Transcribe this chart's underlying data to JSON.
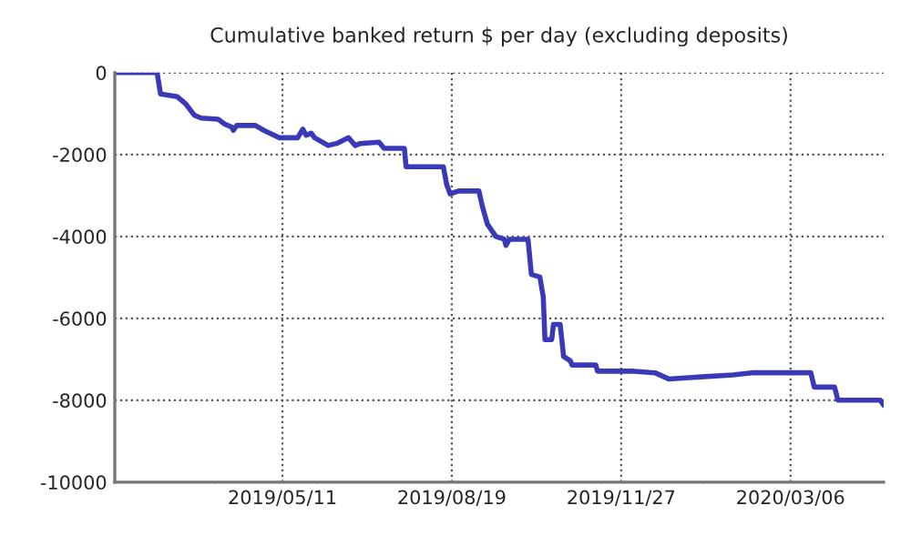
{
  "chart_data": {
    "type": "line",
    "title": "Cumulative banked return $ per day (excluding deposits)",
    "x": [
      "2019-02-02",
      "2019-02-26",
      "2019-02-28",
      "2019-03-10",
      "2019-03-15",
      "2019-03-20",
      "2019-03-24",
      "2019-04-03",
      "2019-04-07",
      "2019-04-11",
      "2019-04-12",
      "2019-04-14",
      "2019-04-25",
      "2019-04-30",
      "2019-05-09",
      "2019-05-20",
      "2019-05-23",
      "2019-05-25",
      "2019-05-28",
      "2019-05-30",
      "2019-06-07",
      "2019-06-12",
      "2019-06-19",
      "2019-06-23",
      "2019-06-26",
      "2019-07-07",
      "2019-07-10",
      "2019-07-22",
      "2019-07-23",
      "2019-08-14",
      "2019-08-16",
      "2019-08-18",
      "2019-08-23",
      "2019-09-04",
      "2019-09-06",
      "2019-09-09",
      "2019-09-14",
      "2019-09-19",
      "2019-09-20",
      "2019-09-22",
      "2019-10-03",
      "2019-10-05",
      "2019-10-10",
      "2019-10-12",
      "2019-10-13",
      "2019-10-17",
      "2019-10-18",
      "2019-10-22",
      "2019-10-24",
      "2019-10-28",
      "2019-10-29",
      "2019-11-12",
      "2019-11-13",
      "2019-12-03",
      "2019-12-17",
      "2019-12-25",
      "2020-02-01",
      "2020-02-12",
      "2020-03-18",
      "2020-03-20",
      "2020-04-01",
      "2020-04-03",
      "2020-04-28",
      "2020-04-30"
    ],
    "series": [
      {
        "color": "#3a3ab8",
        "values": [
          0,
          0,
          -520,
          -590,
          -770,
          -1040,
          -1110,
          -1140,
          -1260,
          -1330,
          -1410,
          -1290,
          -1290,
          -1410,
          -1590,
          -1590,
          -1380,
          -1530,
          -1480,
          -1590,
          -1780,
          -1730,
          -1590,
          -1780,
          -1730,
          -1700,
          -1850,
          -1850,
          -2300,
          -2300,
          -2740,
          -2960,
          -2890,
          -2890,
          -3260,
          -3700,
          -4000,
          -4070,
          -4220,
          -4070,
          -4070,
          -4930,
          -4990,
          -5480,
          -6520,
          -6520,
          -6150,
          -6150,
          -6930,
          -7040,
          -7140,
          -7140,
          -7290,
          -7290,
          -7330,
          -7480,
          -7380,
          -7330,
          -7330,
          -7680,
          -7680,
          -8000,
          -8000,
          -8120
        ]
      }
    ],
    "xlim": [
      "2019-02-01",
      "2020-04-30"
    ],
    "xticks": [
      {
        "value": "2019-05-11",
        "label": "2019/05/11"
      },
      {
        "value": "2019-08-19",
        "label": "2019/08/19"
      },
      {
        "value": "2019-11-27",
        "label": "2019/11/27"
      },
      {
        "value": "2020-03-06",
        "label": "2020/03/06"
      }
    ],
    "ylim": [
      -10000,
      0
    ],
    "yticks": [
      -10000,
      -8000,
      -6000,
      -4000,
      -2000,
      0
    ],
    "grid": true
  }
}
